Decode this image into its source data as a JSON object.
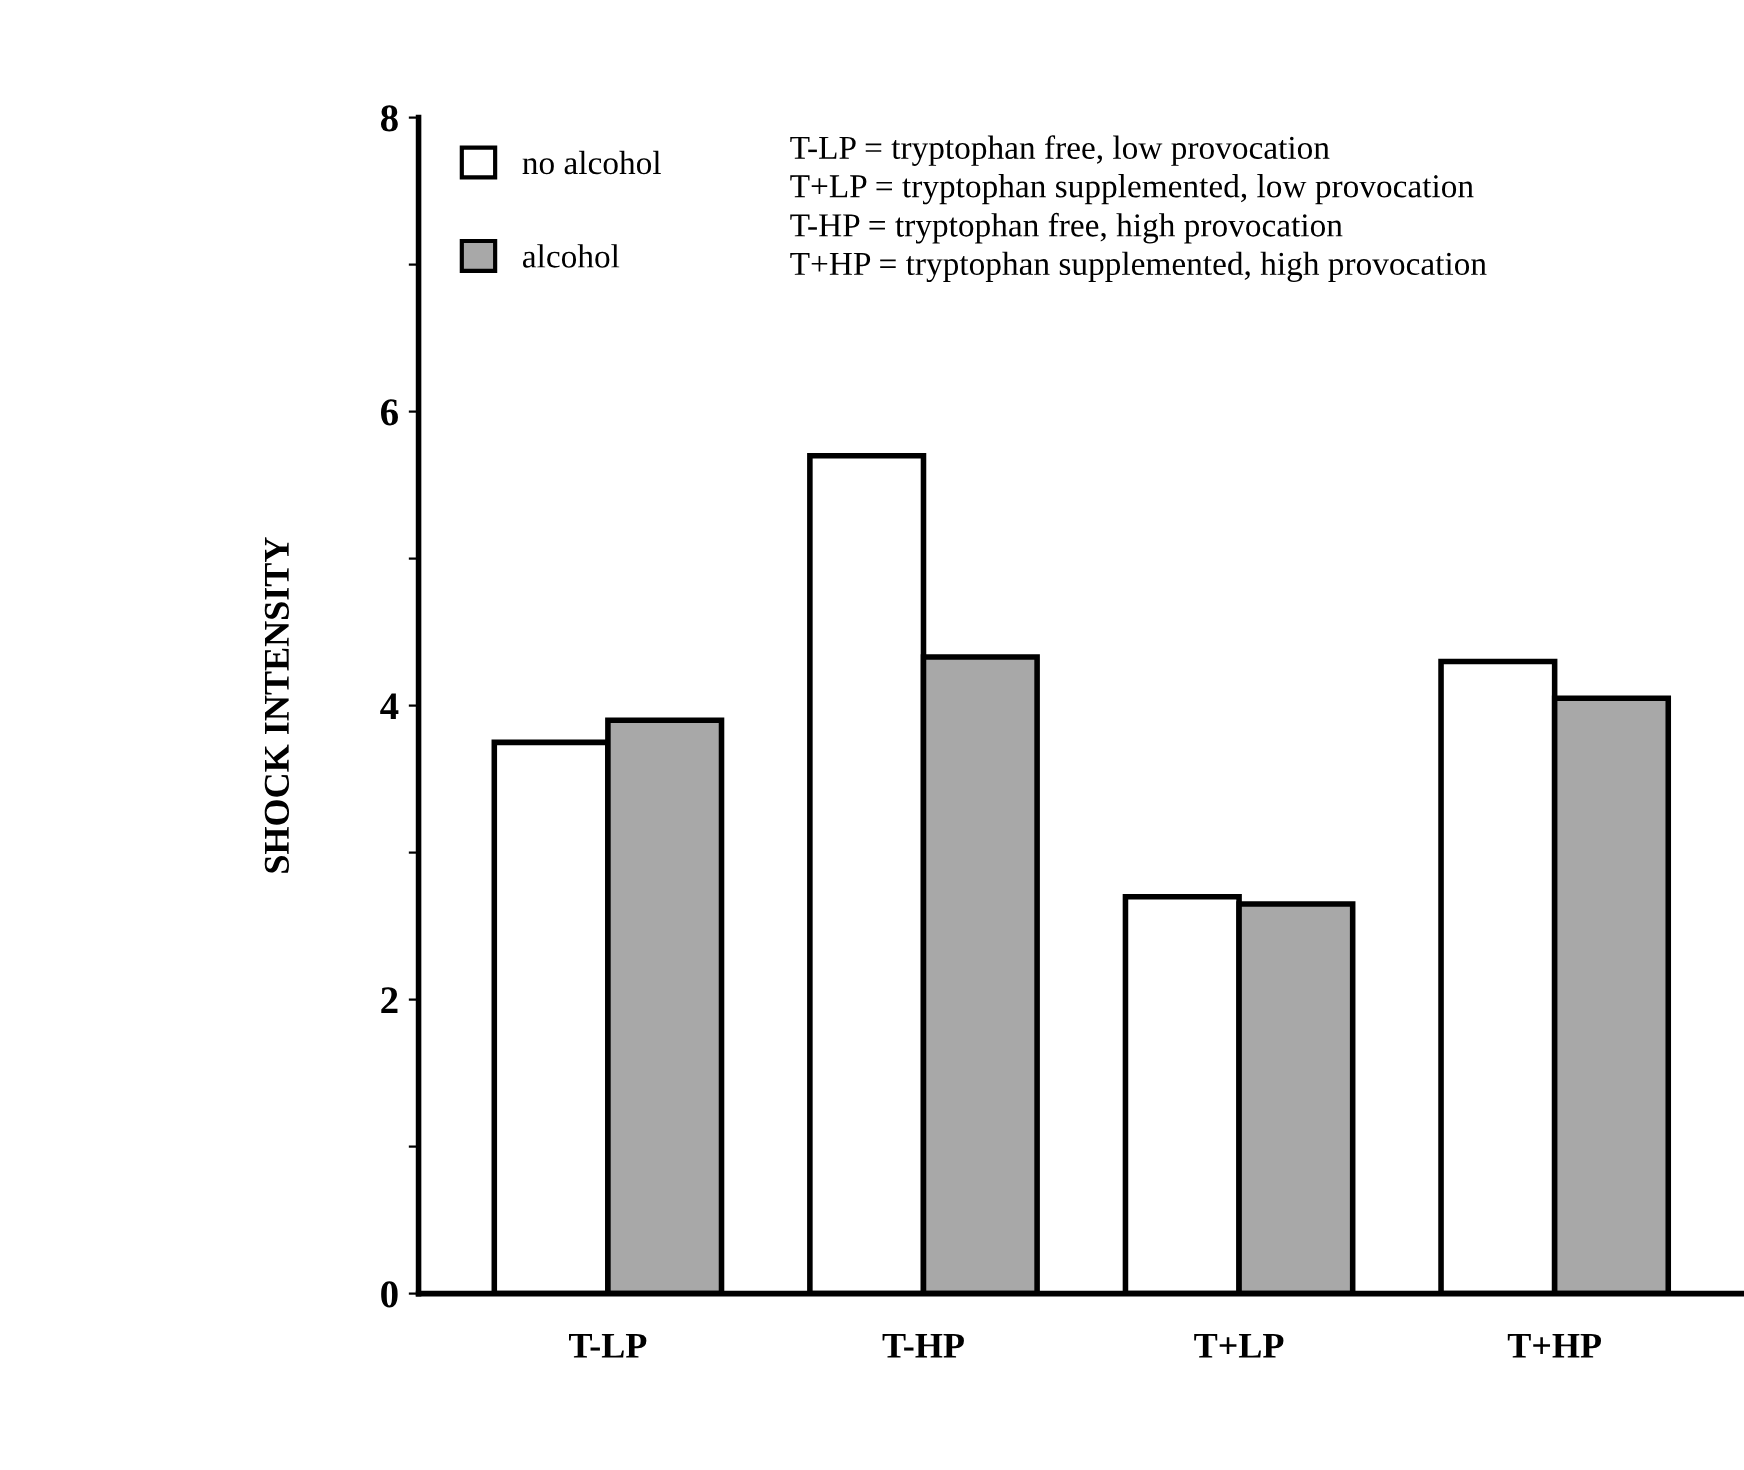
{
  "chart_data": {
    "type": "bar",
    "ylabel": "SHOCK INTENSITY",
    "categories": [
      "T-LP",
      "T-HP",
      "T+LP",
      "T+HP"
    ],
    "series": [
      {
        "name": "no alcohol",
        "color": "#ffffff",
        "values": [
          3.75,
          5.7,
          2.7,
          4.3
        ]
      },
      {
        "name": "alcohol",
        "color": "#a8a8a8",
        "values": [
          3.9,
          4.33,
          2.65,
          4.05
        ]
      }
    ],
    "ylim": [
      0,
      8
    ],
    "yticks": [
      0,
      {
        "value": 1,
        "label": null
      },
      2,
      {
        "value": 3,
        "label": null
      },
      4,
      {
        "value": 5,
        "label": null
      },
      6,
      {
        "value": 7,
        "label": null
      },
      8
    ],
    "grid": false,
    "legend": "top left",
    "annotations": [
      "T-LP = tryptophan free, low provocation",
      "T+LP = tryptophan supplemented, low provocation",
      "T-HP = tryptophan free, high provocation",
      "T+HP = tryptophan supplemented, high provocation"
    ]
  }
}
